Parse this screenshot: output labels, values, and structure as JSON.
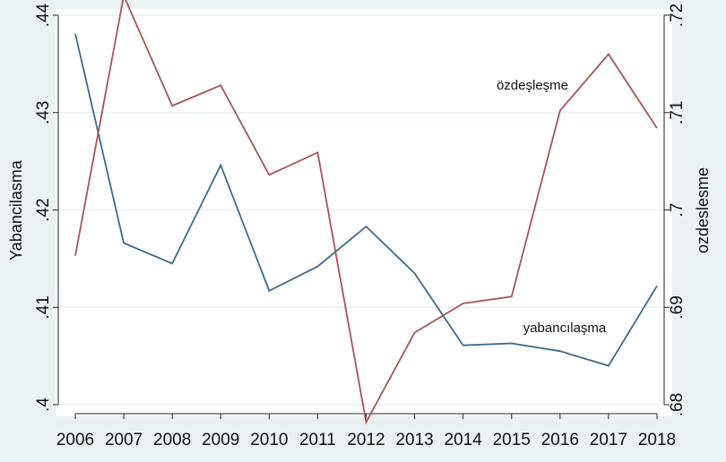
{
  "chart_data": {
    "type": "line",
    "x": [
      2006,
      2007,
      2008,
      2009,
      2010,
      2011,
      2012,
      2013,
      2014,
      2015,
      2016,
      2017,
      2018
    ],
    "x_tick_labels": [
      "2006",
      "2007",
      "2008",
      "2009",
      "2010",
      "2011",
      "2012",
      "2013",
      "2014",
      "2015",
      "2016",
      "2017",
      "2018"
    ],
    "y_left": {
      "label": "Yabancilasma",
      "ylim": [
        0.4,
        0.44
      ],
      "ticks": [
        0.4,
        0.41,
        0.42,
        0.43,
        0.44
      ],
      "tick_labels": [
        ".4",
        ".41",
        ".42",
        ".43",
        ".44"
      ]
    },
    "y_right": {
      "label": "ozdeslesme",
      "ylim": [
        0.68,
        0.72
      ],
      "ticks": [
        0.68,
        0.69,
        0.7,
        0.71,
        0.72
      ],
      "tick_labels": [
        ".68",
        ".69",
        ".7",
        ".71",
        ".72"
      ]
    },
    "series": [
      {
        "name": "yabancılaşma",
        "axis": "left",
        "color": "#3d6a8f",
        "values": [
          0.4381,
          0.4166,
          0.4145,
          0.4246,
          0.4117,
          0.4142,
          0.4183,
          0.4135,
          0.4061,
          0.4063,
          0.4055,
          0.404,
          0.4122
        ]
      },
      {
        "name": "özdeşleşme",
        "axis": "right",
        "color": "#a65558",
        "values": [
          0.6953,
          0.722,
          0.7107,
          0.7128,
          0.7036,
          0.7059,
          0.6782,
          0.6874,
          0.6904,
          0.6911,
          0.7102,
          0.716,
          0.7084
        ]
      }
    ],
    "annotations": [
      {
        "text": "özdeşleşme",
        "series": 1
      },
      {
        "text": "yabancılaşma",
        "series": 0
      }
    ],
    "grid": true,
    "legend": "none"
  }
}
